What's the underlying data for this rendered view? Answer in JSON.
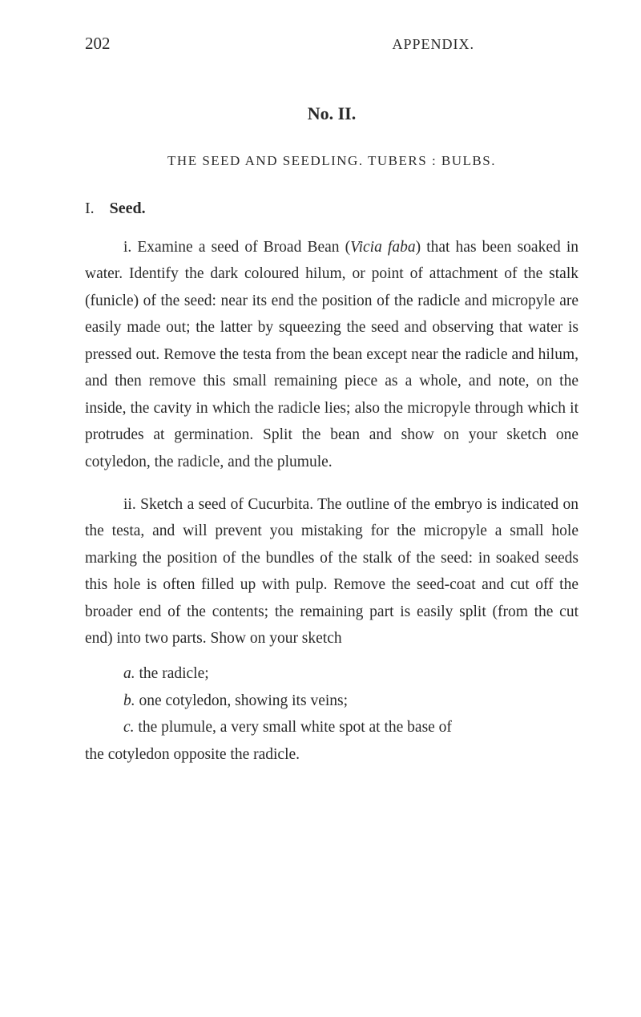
{
  "header": {
    "page_number": "202",
    "running_head": "APPENDIX."
  },
  "section_number": "No. II.",
  "chapter_title": "THE SEED AND SEEDLING.  TUBERS :  BULBS.",
  "subsection": {
    "num": "I.",
    "label": "Seed."
  },
  "para_i_pre": "i.  Examine a seed of Broad Bean (",
  "para_i_ital": "Vicia faba",
  "para_i_post": ") that has been soaked in water. Identify the dark coloured hilum, or point of attachment of the stalk (funicle) of the seed: near its end the position of the radicle and micropyle are easily made out; the latter by squeezing the seed and observing that water is pressed out. Remove the testa from the bean except near the radicle and hilum, and then remove this small remaining piece as a whole, and note, on the inside, the cavity in which the radicle lies; also the micropyle through which it protrudes at germination. Split the bean and show on your sketch one cotyledon, the radicle, and the plumule.",
  "para_ii": "ii.  Sketch a seed of Cucurbita. The outline of the embryo is indicated on the testa, and will prevent you mistaking for the micropyle a small hole marking the position of the bundles of the stalk of the seed: in soaked seeds this hole is often filled up with pulp. Remove the seed-coat and cut off the broader end of the contents; the remaining part is easily split (from the cut end) into two parts. Show on your sketch",
  "item_a_pre": "a.",
  "item_a_txt": "  the radicle;",
  "item_b_pre": "b.",
  "item_b_txt": "  one cotyledon, showing its veins;",
  "item_c_pre": "c.",
  "item_c_txt": "  the plumule, a very small white spot at the base of",
  "item_c_cont": "the cotyledon opposite the radicle."
}
